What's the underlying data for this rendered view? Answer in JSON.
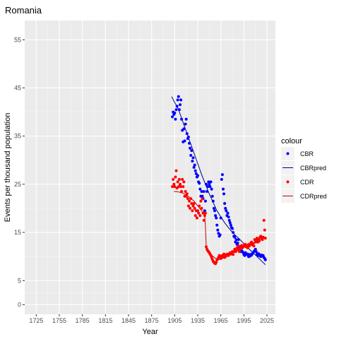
{
  "chart_data": {
    "type": "scatter",
    "title": "Romania",
    "xlabel": "Year",
    "ylabel": "Events per thousand population",
    "xlim": [
      1710,
      2036
    ],
    "ylim": [
      -2,
      59
    ],
    "xticks": [
      1725,
      1755,
      1785,
      1815,
      1845,
      1875,
      1905,
      1935,
      1965,
      1995,
      2025
    ],
    "yticks": [
      0,
      5,
      15,
      25,
      35,
      45,
      55
    ],
    "grid": true,
    "legend": {
      "title": "colour",
      "position": "right"
    },
    "colors": {
      "CBR": "#0000ff",
      "CBRpred": "#00008b",
      "CDR": "#ff0000",
      "CDRpred": "#cc0000"
    },
    "series": [
      {
        "name": "CBR",
        "kind": "points",
        "x": [
          1902,
          1903,
          1904,
          1905,
          1906,
          1907,
          1908,
          1909,
          1910,
          1911,
          1912,
          1913,
          1914,
          1915,
          1916,
          1917,
          1918,
          1919,
          1920,
          1921,
          1922,
          1923,
          1924,
          1925,
          1926,
          1927,
          1928,
          1929,
          1930,
          1931,
          1932,
          1933,
          1934,
          1935,
          1936,
          1937,
          1938,
          1939,
          1940,
          1941,
          1942,
          1943,
          1944,
          1945,
          1946,
          1947,
          1948,
          1949,
          1950,
          1951,
          1952,
          1953,
          1954,
          1955,
          1956,
          1957,
          1958,
          1959,
          1960,
          1961,
          1962,
          1963,
          1964,
          1965,
          1966,
          1967,
          1968,
          1969,
          1970,
          1971,
          1972,
          1973,
          1974,
          1975,
          1976,
          1977,
          1978,
          1979,
          1980,
          1981,
          1982,
          1983,
          1984,
          1985,
          1986,
          1987,
          1988,
          1989,
          1990,
          1991,
          1992,
          1993,
          1994,
          1995,
          1996,
          1997,
          1998,
          1999,
          2000,
          2001,
          2002,
          2003,
          2004,
          2005,
          2006,
          2007,
          2008,
          2009,
          2010,
          2011,
          2012,
          2013,
          2014,
          2015,
          2016,
          2017,
          2018,
          2019,
          2020,
          2021,
          2022,
          2023
        ],
        "y": [
          39,
          40,
          39.5,
          39.8,
          38.5,
          40.5,
          41.2,
          42.5,
          43.2,
          40.5,
          41.5,
          42.5,
          38.5,
          36.2,
          33.8,
          36.5,
          34,
          37.5,
          38.5,
          35.5,
          34.5,
          34.8,
          33.5,
          32.5,
          31,
          32,
          29.8,
          30.5,
          28.5,
          29,
          27.8,
          27.2,
          26.5,
          26.8,
          25.5,
          25.2,
          24,
          22.5,
          23.5,
          22.5,
          22,
          23.5,
          19.5,
          21.5,
          25,
          23.5,
          24.5,
          25.5,
          25,
          24.5,
          25.5,
          24,
          22.5,
          21.5,
          20,
          19.5,
          18.5,
          18,
          16.5,
          15.5,
          14.8,
          14.2,
          14.5,
          18,
          26,
          27,
          24,
          23,
          21,
          20,
          19.5,
          18.5,
          19,
          18.2,
          17.5,
          17,
          16.5,
          16,
          15.8,
          15,
          14.2,
          14,
          13,
          13.5,
          12.5,
          12.8,
          13.5,
          12,
          12,
          11,
          11.2,
          11,
          10.8,
          10.4,
          10.2,
          10.8,
          10.6,
          10.4,
          10.5,
          10,
          10,
          10.4,
          10.2,
          10.3,
          10.6,
          10.8,
          11,
          11.2,
          11.5,
          11,
          10.5,
          10.2,
          10.6,
          10.4,
          10.1,
          10,
          10.3,
          10.1,
          10.2,
          9.8,
          9.6,
          9.3
        ]
      },
      {
        "name": "CBRpred",
        "kind": "line",
        "x": [
          1901,
          1910,
          1920,
          1930,
          1940,
          1950,
          1960,
          1970,
          1980,
          1990,
          2000,
          2010,
          2023
        ],
        "y": [
          43.2,
          40.5,
          36,
          31.5,
          27,
          23,
          19.5,
          17,
          15,
          13.5,
          11.8,
          10.3,
          8.3
        ]
      },
      {
        "name": "CDR",
        "kind": "points",
        "x": [
          1902,
          1903,
          1904,
          1905,
          1906,
          1907,
          1908,
          1909,
          1910,
          1911,
          1912,
          1913,
          1914,
          1915,
          1916,
          1917,
          1918,
          1919,
          1920,
          1921,
          1922,
          1923,
          1924,
          1925,
          1926,
          1927,
          1928,
          1929,
          1930,
          1931,
          1932,
          1933,
          1934,
          1935,
          1936,
          1937,
          1938,
          1939,
          1940,
          1941,
          1942,
          1943,
          1944,
          1945,
          1946,
          1947,
          1948,
          1949,
          1950,
          1951,
          1952,
          1953,
          1954,
          1955,
          1956,
          1957,
          1958,
          1959,
          1960,
          1961,
          1962,
          1963,
          1964,
          1965,
          1966,
          1967,
          1968,
          1969,
          1970,
          1971,
          1972,
          1973,
          1974,
          1975,
          1976,
          1977,
          1978,
          1979,
          1980,
          1981,
          1982,
          1983,
          1984,
          1985,
          1986,
          1987,
          1988,
          1989,
          1990,
          1991,
          1992,
          1993,
          1994,
          1995,
          1996,
          1997,
          1998,
          1999,
          2000,
          2001,
          2002,
          2003,
          2004,
          2005,
          2006,
          2007,
          2008,
          2009,
          2010,
          2011,
          2012,
          2013,
          2014,
          2015,
          2016,
          2017,
          2018,
          2019,
          2020,
          2021,
          2022,
          2023
        ],
        "y": [
          24.5,
          26,
          25,
          24.5,
          26.5,
          27.8,
          24.2,
          25.5,
          24.5,
          26,
          25,
          24.5,
          23.5,
          26,
          24.5,
          25.5,
          22.5,
          23.5,
          22.5,
          23,
          22,
          20.5,
          21.5,
          20,
          22,
          21,
          19.5,
          20.5,
          21,
          20,
          18.5,
          19.5,
          18,
          19.5,
          19,
          20.5,
          18.5,
          21.5,
          20,
          22,
          19,
          17.5,
          18.5,
          19,
          12,
          11.5,
          11.2,
          11,
          10.8,
          10.5,
          10.2,
          9.8,
          9.4,
          9,
          8.8,
          8.6,
          8.5,
          8.8,
          9.3,
          9.5,
          9.8,
          10.2,
          10.1,
          9.6,
          9.8,
          10.2,
          10,
          10.5,
          9.8,
          10,
          10.4,
          10.2,
          10.5,
          10.2,
          10.5,
          10.8,
          10.5,
          10.8,
          11,
          10.4,
          11,
          11.5,
          11,
          11.2,
          11.8,
          11.5,
          12.2,
          11,
          11.5,
          12,
          12.3,
          11.8,
          12,
          12.2,
          12.5,
          12.5,
          12,
          12.2,
          11.8,
          12.5,
          12.2,
          12.5,
          12.8,
          13,
          12.4,
          12.6,
          12.2,
          13.5,
          13,
          13.5,
          13.8,
          13,
          13.6,
          13.2,
          14,
          14.2,
          13.8,
          13.5,
          14,
          17.5,
          15.5,
          13.8
        ]
      },
      {
        "name": "CDRpred",
        "kind": "line",
        "x": [
          1904,
          1910,
          1915,
          1920,
          1925,
          1930,
          1935,
          1940,
          1944,
          1945,
          1946,
          1950,
          1955,
          1960,
          1962,
          1965,
          1970,
          1975,
          1980,
          1985,
          1990,
          1995,
          2000,
          2005,
          2010,
          2015,
          2020,
          2023
        ],
        "y": [
          23.5,
          23.4,
          23.2,
          22.8,
          22.2,
          21.5,
          20.5,
          19.5,
          18.8,
          16,
          12,
          10.8,
          10,
          9.4,
          9.3,
          9.4,
          9.8,
          10.3,
          10.8,
          11.3,
          11.5,
          11.9,
          12.3,
          12.7,
          13.1,
          13.4,
          13.7,
          13.9
        ]
      }
    ]
  }
}
